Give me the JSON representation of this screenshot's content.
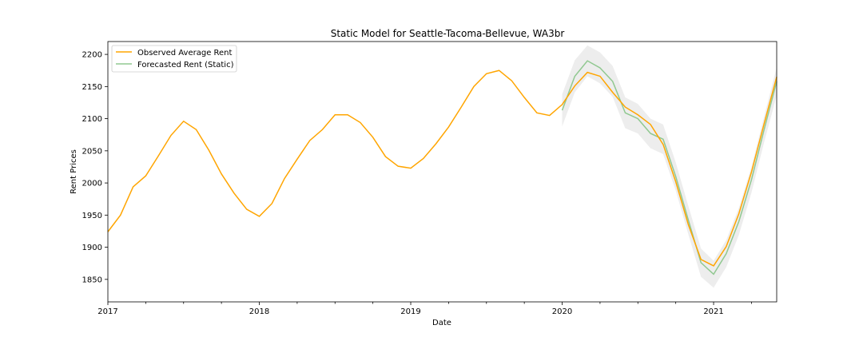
{
  "chart_data": {
    "type": "line",
    "title": "Static Model for Seattle-Tacoma-Bellevue, WA3br",
    "xlabel": "Date",
    "ylabel": "Rent Prices",
    "xlim": [
      "2017-01",
      "2021-06"
    ],
    "ylim": [
      1815,
      2220
    ],
    "x_major_ticks": [
      "2017",
      "2018",
      "2019",
      "2020",
      "2021"
    ],
    "y_ticks": [
      1850,
      1900,
      1950,
      2000,
      2050,
      2100,
      2150,
      2200
    ],
    "grid": false,
    "legend_position": "top-left",
    "colors": {
      "observed": "#ffa500",
      "forecast": "#90c890",
      "band": "#d8d8d8"
    },
    "series": [
      {
        "name": "Observed Average Rent",
        "x": [
          "2017-01",
          "2017-02",
          "2017-03",
          "2017-04",
          "2017-05",
          "2017-06",
          "2017-07",
          "2017-08",
          "2017-09",
          "2017-10",
          "2017-11",
          "2017-12",
          "2018-01",
          "2018-02",
          "2018-03",
          "2018-04",
          "2018-05",
          "2018-06",
          "2018-07",
          "2018-08",
          "2018-09",
          "2018-10",
          "2018-11",
          "2018-12",
          "2019-01",
          "2019-02",
          "2019-03",
          "2019-04",
          "2019-05",
          "2019-06",
          "2019-07",
          "2019-08",
          "2019-09",
          "2019-10",
          "2019-11",
          "2019-12",
          "2020-01",
          "2020-02",
          "2020-03",
          "2020-04",
          "2020-05",
          "2020-06",
          "2020-07",
          "2020-08",
          "2020-09",
          "2020-10",
          "2020-11",
          "2020-12",
          "2021-01",
          "2021-02",
          "2021-03",
          "2021-04",
          "2021-05",
          "2021-06"
        ],
        "values": [
          1924,
          1950,
          1994,
          2011,
          2042,
          2074,
          2096,
          2083,
          2051,
          2014,
          1984,
          1959,
          1948,
          1968,
          2007,
          2037,
          2066,
          2083,
          2106,
          2106,
          2094,
          2071,
          2041,
          2026,
          2023,
          2038,
          2061,
          2087,
          2118,
          2150,
          2170,
          2175,
          2159,
          2133,
          2109,
          2105,
          2122,
          2151,
          2172,
          2166,
          2141,
          2118,
          2106,
          2091,
          2060,
          2002,
          1935,
          1881,
          1871,
          1901,
          1952,
          2017,
          2092,
          2165
        ]
      },
      {
        "name": "Forecasted Rent (Static)",
        "x": [
          "2020-01",
          "2020-02",
          "2020-03",
          "2020-04",
          "2020-05",
          "2020-06",
          "2020-07",
          "2020-08",
          "2020-09",
          "2020-10",
          "2020-11",
          "2020-12",
          "2021-01",
          "2021-02",
          "2021-03",
          "2021-04",
          "2021-05",
          "2021-06"
        ],
        "values": [
          2113,
          2166,
          2190,
          2179,
          2158,
          2109,
          2100,
          2077,
          2068,
          2010,
          1942,
          1876,
          1858,
          1890,
          1940,
          2005,
          2083,
          2158
        ],
        "lower": [
          2088,
          2141,
          2166,
          2155,
          2134,
          2085,
          2077,
          2054,
          2045,
          1988,
          1920,
          1854,
          1837,
          1869,
          1919,
          1985,
          2063,
          2136
        ],
        "upper": [
          2138,
          2191,
          2214,
          2203,
          2182,
          2133,
          2123,
          2100,
          2091,
          2032,
          1964,
          1898,
          1879,
          1911,
          1961,
          2025,
          2103,
          2180
        ]
      }
    ]
  }
}
